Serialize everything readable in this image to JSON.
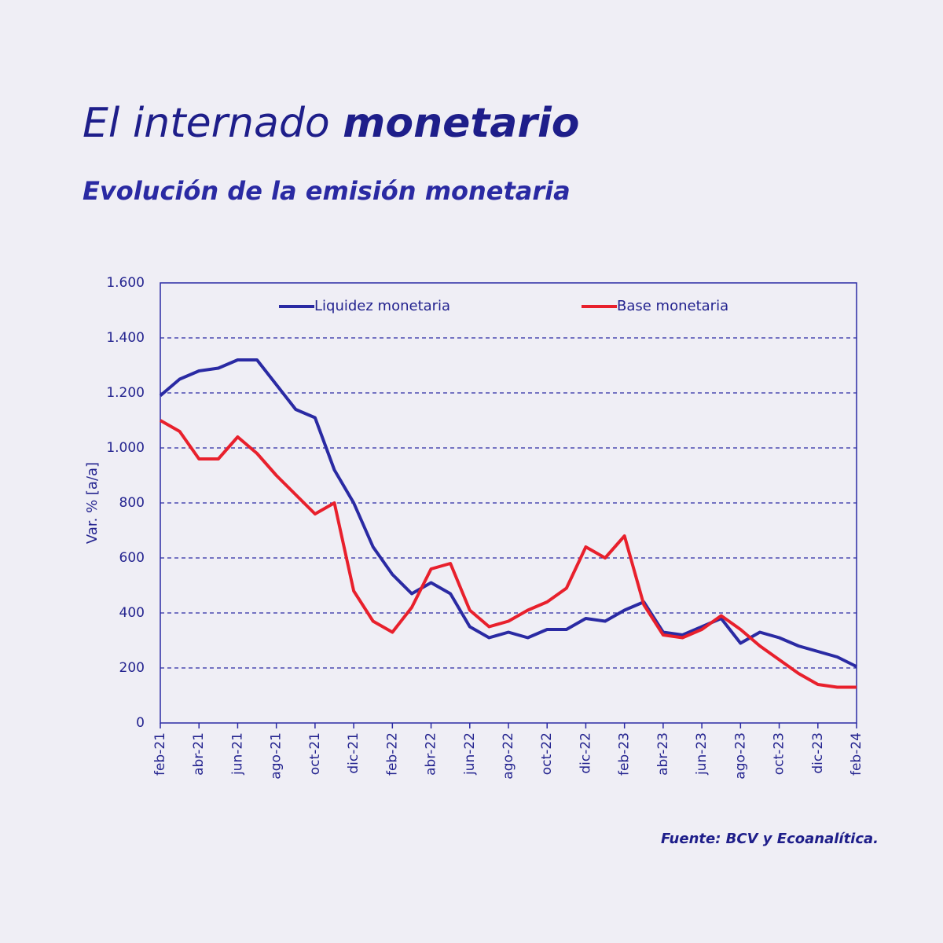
{
  "chart_data": {
    "type": "line",
    "title": "El internado",
    "title_emphasis": "monetario",
    "subtitle": "Evolución de la emisión monetaria",
    "y_label": "Var. % [a/a]",
    "source": "Fuente: BCV y Ecoanalítica.",
    "categories": [
      "feb-21",
      null,
      "abr-21",
      null,
      "jun-21",
      null,
      "ago-21",
      null,
      "oct-21",
      null,
      "dic-21",
      null,
      "feb-22",
      null,
      "abr-22",
      null,
      "jun-22",
      null,
      "ago-22",
      null,
      "oct-22",
      null,
      "dic-22",
      null,
      "feb-23",
      null,
      "abr-23",
      null,
      "jun-23",
      null,
      "ago-23",
      null,
      "oct-23",
      null,
      "dic-23",
      null,
      "feb-24"
    ],
    "series": [
      {
        "name": "Liquidez monetaria",
        "color": "#2a2aa3",
        "values": [
          1190,
          1250,
          1280,
          1290,
          1320,
          1320,
          1230,
          1140,
          1110,
          920,
          800,
          640,
          540,
          470,
          510,
          470,
          350,
          310,
          330,
          310,
          340,
          340,
          380,
          370,
          410,
          440,
          330,
          320,
          350,
          380,
          290,
          330,
          310,
          280,
          260,
          240,
          205
        ]
      },
      {
        "name": "Base monetaria",
        "color": "#e8202c",
        "values": [
          1100,
          1060,
          960,
          960,
          1040,
          980,
          900,
          830,
          760,
          800,
          480,
          370,
          330,
          420,
          560,
          580,
          410,
          350,
          370,
          410,
          440,
          490,
          640,
          600,
          680,
          430,
          320,
          310,
          340,
          390,
          340,
          280,
          230,
          180,
          140,
          130,
          130
        ]
      }
    ],
    "ylim": [
      0,
      1600
    ],
    "yticks": [
      0,
      200,
      400,
      600,
      800,
      {
        "value": 1000,
        "label": "1.000"
      },
      {
        "value": 1200,
        "label": "1.200"
      },
      {
        "value": 1400,
        "label": "1.400"
      },
      {
        "value": 1600,
        "label": "1.600"
      }
    ],
    "grid": true,
    "legend": "top"
  }
}
